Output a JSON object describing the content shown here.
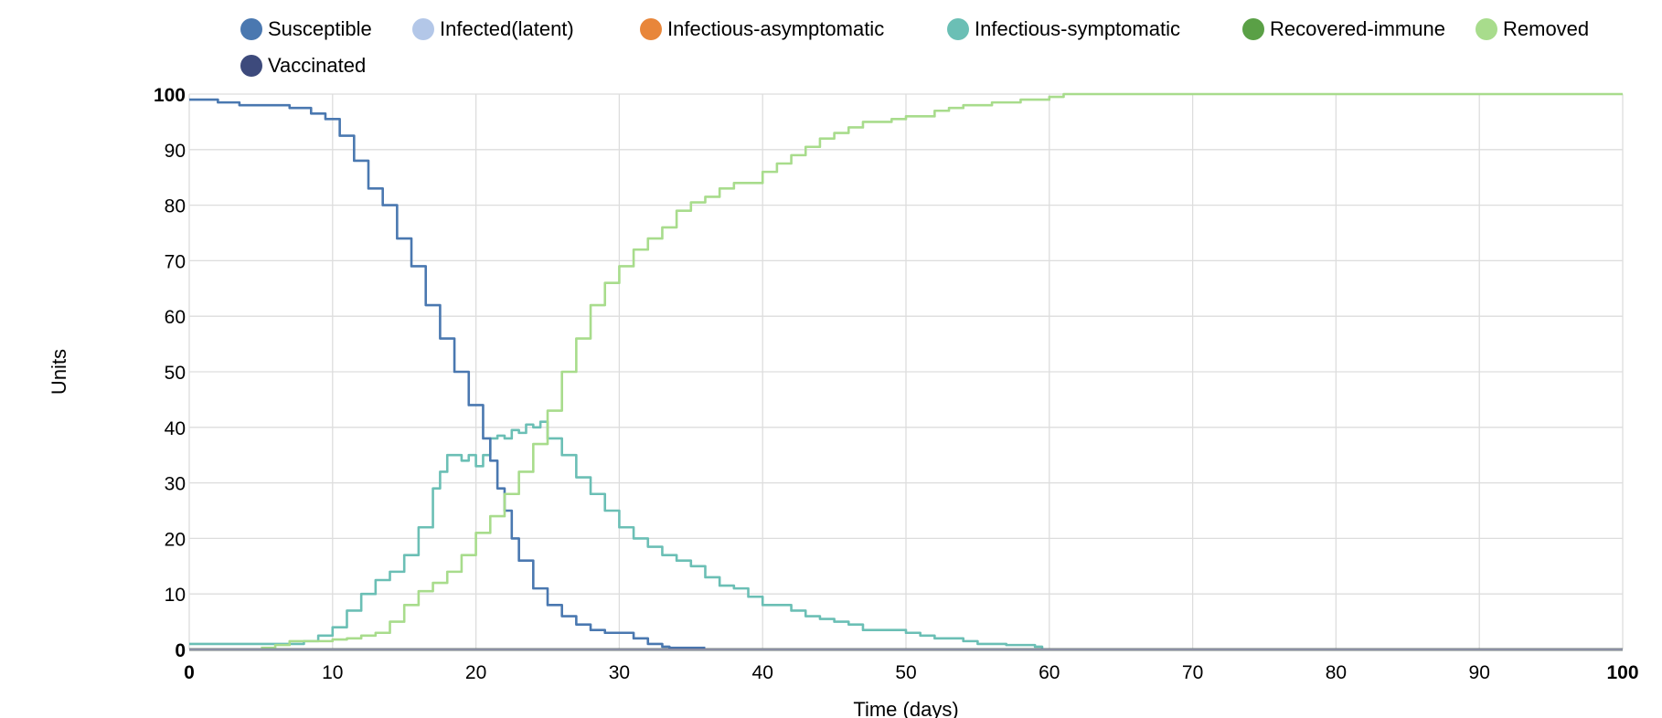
{
  "chart_data": {
    "type": "line",
    "title": "",
    "xlabel": "Time (days)",
    "ylabel": "Units",
    "xlim": [
      0,
      100
    ],
    "ylim": [
      0,
      100
    ],
    "grid": true,
    "legend_position": "top",
    "x_ticks": [
      0,
      10,
      20,
      30,
      40,
      50,
      60,
      70,
      80,
      90,
      100
    ],
    "y_ticks": [
      0,
      10,
      20,
      30,
      40,
      50,
      60,
      70,
      80,
      90,
      100
    ],
    "legend": [
      {
        "name": "Susceptible",
        "color": "#4a78b0"
      },
      {
        "name": "Infected(latent)",
        "color": "#b3c7e8"
      },
      {
        "name": "Infectious-asymptomatic",
        "color": "#e8863a"
      },
      {
        "name": "Infectious-symptomatic",
        "color": "#6bbfb5"
      },
      {
        "name": "Recovered-immune",
        "color": "#5aa046"
      },
      {
        "name": "Removed",
        "color": "#a8dc8c"
      },
      {
        "name": "Vaccinated",
        "color": "#3d4a7c"
      }
    ],
    "series": [
      {
        "name": "Susceptible",
        "color": "#4a78b0",
        "step": true,
        "x": [
          0,
          2,
          3.5,
          7,
          8.5,
          9.5,
          10.5,
          11.5,
          12.5,
          13.5,
          14.5,
          15.5,
          16.5,
          17.5,
          18.5,
          19.5,
          20.5,
          21,
          21.5,
          22,
          22.5,
          23,
          24,
          25,
          26,
          27,
          28,
          29,
          31,
          32,
          33,
          33.5,
          36
        ],
        "values": [
          99,
          98.5,
          98,
          97.5,
          96.5,
          95.5,
          92.5,
          88,
          83,
          80,
          74,
          69,
          62,
          56,
          50,
          44,
          38,
          34,
          29,
          25,
          20,
          16,
          11,
          8,
          6,
          4.5,
          3.5,
          3,
          2,
          1,
          0.5,
          0.3,
          0.3
        ]
      },
      {
        "name": "Infected(latent)",
        "color": "#b3c7e8",
        "step": true,
        "x": [
          0,
          100
        ],
        "values": [
          0,
          0
        ]
      },
      {
        "name": "Infectious-asymptomatic",
        "color": "#e8863a",
        "step": true,
        "x": [
          0,
          100
        ],
        "values": [
          0,
          0
        ]
      },
      {
        "name": "Infectious-symptomatic",
        "color": "#6bbfb5",
        "step": true,
        "x": [
          0,
          8,
          9,
          10,
          11,
          12,
          13,
          14,
          15,
          16,
          17,
          17.5,
          18,
          19,
          19.5,
          20,
          20.5,
          21,
          21.5,
          22,
          22.5,
          23,
          23.5,
          24,
          24.5,
          25,
          26,
          27,
          28,
          29,
          30,
          31,
          32,
          33,
          34,
          35,
          36,
          37,
          38,
          39,
          40,
          41,
          42,
          43,
          44,
          45,
          46,
          47,
          48,
          50,
          51,
          52,
          54,
          55,
          57,
          59,
          59.5
        ],
        "values": [
          1,
          1.5,
          2.5,
          4,
          7,
          10,
          12.5,
          14,
          17,
          22,
          29,
          32,
          35,
          34,
          35,
          33,
          35,
          38,
          38.5,
          38,
          39.5,
          39,
          40.5,
          40,
          41,
          38,
          35,
          31,
          28,
          25,
          22,
          20,
          18.5,
          17,
          16,
          15,
          13,
          11.5,
          11,
          9.5,
          8,
          8,
          7,
          6,
          5.5,
          5,
          4.5,
          3.5,
          3.5,
          3,
          2.5,
          2,
          1.5,
          1,
          0.8,
          0.5,
          0
        ]
      },
      {
        "name": "Recovered-immune",
        "color": "#5aa046",
        "step": true,
        "x": [
          0,
          100
        ],
        "values": [
          0,
          0
        ]
      },
      {
        "name": "Removed",
        "color": "#a8dc8c",
        "step": true,
        "x": [
          5,
          6,
          7,
          10,
          11,
          12,
          13,
          14,
          15,
          16,
          17,
          18,
          19,
          20,
          21,
          22,
          23,
          24,
          25,
          26,
          27,
          28,
          29,
          30,
          31,
          32,
          33,
          34,
          35,
          36,
          37,
          38,
          40,
          41,
          42,
          43,
          44,
          45,
          46,
          47,
          49,
          50,
          52,
          53,
          54,
          56,
          58,
          60,
          61,
          62,
          100
        ],
        "values": [
          0.3,
          0.8,
          1.5,
          1.8,
          2,
          2.5,
          3,
          5,
          8,
          10.5,
          12,
          14,
          17,
          21,
          24,
          28,
          32,
          37,
          43,
          50,
          56,
          62,
          66,
          69,
          72,
          74,
          76,
          79,
          80.5,
          81.5,
          83,
          84,
          86,
          87.5,
          89,
          90.5,
          92,
          93,
          94,
          95,
          95.5,
          96,
          97,
          97.5,
          98,
          98.5,
          99,
          99.5,
          100,
          100,
          100
        ]
      },
      {
        "name": "Vaccinated",
        "color": "#3d4a7c",
        "step": true,
        "x": [
          0,
          100
        ],
        "values": [
          0,
          0
        ]
      }
    ]
  }
}
